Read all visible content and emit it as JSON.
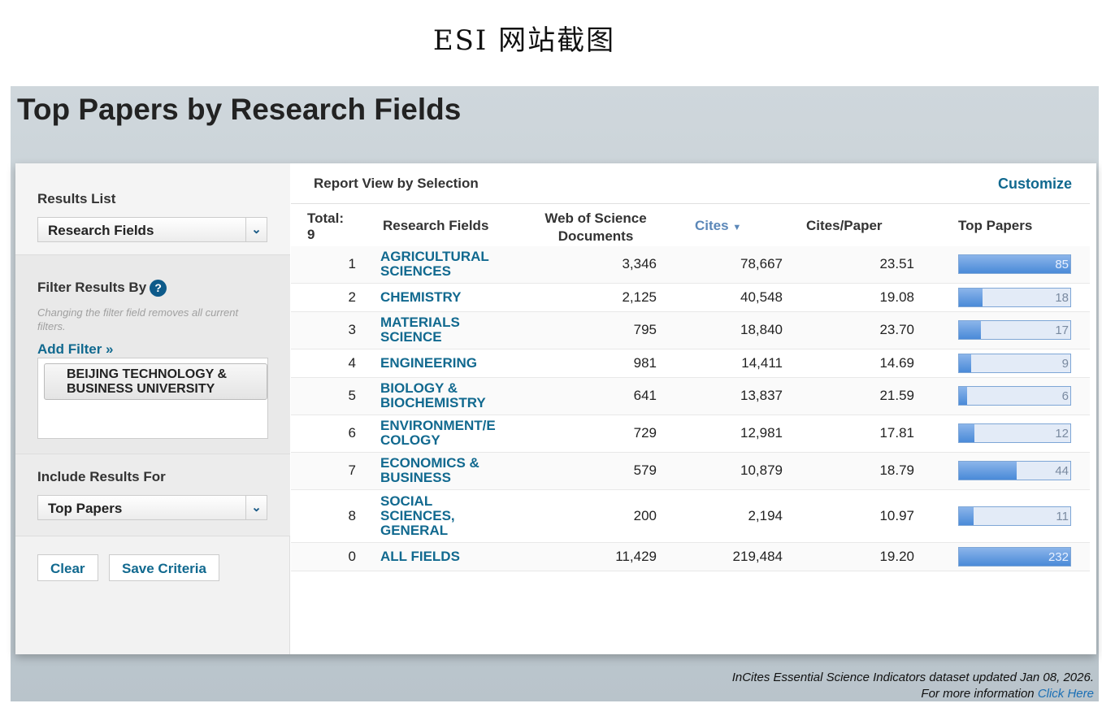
{
  "caption": "ESI 网站截图",
  "page_title": "Top Papers by Research Fields",
  "sidebar": {
    "results_list_label": "Results List",
    "results_list_value": "Research Fields",
    "filter_label": "Filter Results By",
    "filter_note": "Changing the filter field removes all current filters.",
    "add_filter": "Add Filter »",
    "filter_chip": "BEIJING TECHNOLOGY & BUSINESS UNIVERSITY",
    "include_label": "Include Results For",
    "include_value": "Top Papers",
    "clear": "Clear",
    "save": "Save Criteria"
  },
  "report": {
    "title": "Report View by Selection",
    "customize": "Customize",
    "headers": {
      "total": "Total:",
      "total_count": "9",
      "field": "Research Fields",
      "docs": "Web of Science Documents",
      "cites": "Cites",
      "cpp": "Cites/Paper",
      "top": "Top Papers"
    },
    "bar_color": "#4a8ad8",
    "rows": [
      {
        "rank": "1",
        "field": "AGRICULTURAL SCIENCES",
        "docs": "3,346",
        "cites": "78,667",
        "cpp": "23.51",
        "top": "85",
        "fill": 100
      },
      {
        "rank": "2",
        "field": "CHEMISTRY",
        "docs": "2,125",
        "cites": "40,548",
        "cpp": "19.08",
        "top": "18",
        "fill": 21
      },
      {
        "rank": "3",
        "field": "MATERIALS SCIENCE",
        "docs": "795",
        "cites": "18,840",
        "cpp": "23.70",
        "top": "17",
        "fill": 20
      },
      {
        "rank": "4",
        "field": "ENGINEERING",
        "docs": "981",
        "cites": "14,411",
        "cpp": "14.69",
        "top": "9",
        "fill": 11
      },
      {
        "rank": "5",
        "field": "BIOLOGY & BIOCHEMISTRY",
        "docs": "641",
        "cites": "13,837",
        "cpp": "21.59",
        "top": "6",
        "fill": 7
      },
      {
        "rank": "6",
        "field": "ENVIRONMENT/E COLOGY",
        "docs": "729",
        "cites": "12,981",
        "cpp": "17.81",
        "top": "12",
        "fill": 14
      },
      {
        "rank": "7",
        "field": "ECONOMICS & BUSINESS",
        "docs": "579",
        "cites": "10,879",
        "cpp": "18.79",
        "top": "44",
        "fill": 52
      },
      {
        "rank": "8",
        "field": "SOCIAL SCIENCES, GENERAL",
        "docs": "200",
        "cites": "2,194",
        "cpp": "10.97",
        "top": "11",
        "fill": 13
      },
      {
        "rank": "0",
        "field": "ALL FIELDS",
        "docs": "11,429",
        "cites": "219,484",
        "cpp": "19.20",
        "top": "232",
        "fill": 100
      }
    ]
  },
  "footer": {
    "line1": "InCites Essential Science Indicators dataset updated Jan 08, 2026.",
    "line2": "For more information",
    "link": "Click Here"
  }
}
